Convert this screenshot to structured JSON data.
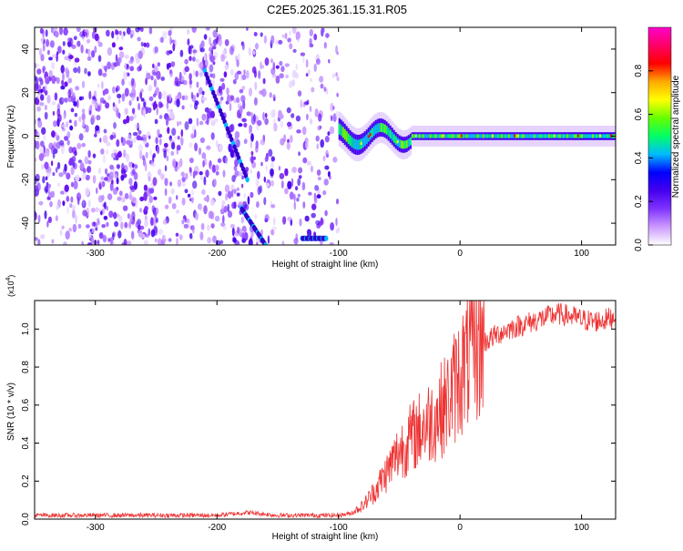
{
  "title": "C2E5.2025.361.15.31.R05",
  "chart_data": [
    {
      "type": "heatmap",
      "title": "C2E5.2025.361.15.31.R05",
      "xlabel": "Height of straight line (km)",
      "ylabel": "Frequency (Hz)",
      "xlim": [
        -350,
        128
      ],
      "ylim": [
        -50,
        50
      ],
      "xticks": [
        -300,
        -200,
        -100,
        0,
        100
      ],
      "xtick_labels": [
        "-300",
        "-200",
        "-100",
        "0",
        "100"
      ],
      "yticks": [
        -40,
        -20,
        0,
        20,
        40
      ],
      "ytick_labels": [
        "-40",
        "-20",
        "0",
        "20",
        "40"
      ],
      "colorbar": {
        "label": "Normalized spectral amplitude",
        "range": [
          0,
          1
        ],
        "ticks": [
          0.0,
          0.2,
          0.4,
          0.6,
          0.8
        ],
        "tick_labels": [
          "0.0",
          "0.2",
          "0.4",
          "0.6",
          "0.8"
        ],
        "colormap": [
          "#ffffff",
          "#cc99ff",
          "#7f33ff",
          "#4400ee",
          "#0000ff",
          "#00bbff",
          "#00ff66",
          "#66ff00",
          "#ffff00",
          "#ffaa00",
          "#ff0000",
          "#ff0066",
          "#ff00cc"
        ]
      },
      "regions": {
        "noise_x": [
          -350,
          -100
        ],
        "trace_x": [
          -100,
          128
        ],
        "trace_center_hz": 0,
        "streaks": [
          {
            "x": [
              -210,
              -175
            ],
            "y": [
              30,
              -20
            ]
          },
          {
            "x": [
              -180,
              -160
            ],
            "y": [
              -33,
              -50
            ]
          },
          {
            "x": [
              -130,
              -110
            ],
            "y": [
              -47,
              -47
            ]
          }
        ]
      }
    },
    {
      "type": "line",
      "xlabel": "Height of straight line (km)",
      "ylabel": "SNR (10 * v/v)",
      "scale_label": "(x10",
      "scale_exp": "4",
      "scale_close": ")",
      "xlim": [
        -350,
        128
      ],
      "ylim": [
        0,
        11500
      ],
      "xticks": [
        -300,
        -200,
        -100,
        0,
        100
      ],
      "xtick_labels": [
        "-300",
        "-200",
        "-100",
        "0",
        "100"
      ],
      "yticks": [
        0,
        2000,
        4000,
        6000,
        8000,
        10000
      ],
      "ytick_labels": [
        "0.0",
        "0.2",
        "0.4",
        "0.6",
        "0.8",
        "1.0"
      ],
      "color": "#ee3333",
      "x": [
        -350,
        -300,
        -250,
        -200,
        -175,
        -150,
        -125,
        -100,
        -90,
        -80,
        -70,
        -60,
        -50,
        -40,
        -30,
        -20,
        -10,
        0,
        10,
        20,
        30,
        40,
        50,
        60,
        70,
        80,
        90,
        100,
        110,
        120,
        128
      ],
      "y": [
        200,
        200,
        200,
        200,
        350,
        200,
        200,
        200,
        300,
        700,
        1500,
        2500,
        3600,
        4300,
        4900,
        5400,
        6200,
        7600,
        8800,
        9300,
        9700,
        10000,
        10200,
        10400,
        10600,
        10800,
        10700,
        10500,
        10400,
        10500,
        10700
      ]
    }
  ]
}
